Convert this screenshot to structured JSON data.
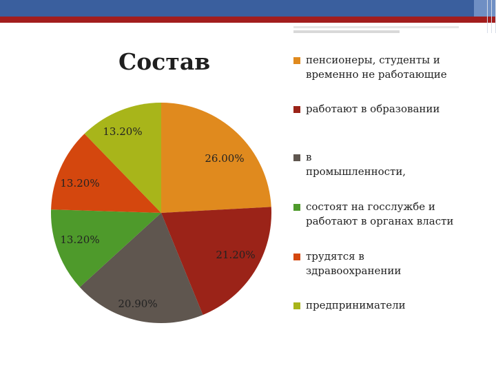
{
  "slide": {
    "title": "Состав"
  },
  "chart_data": {
    "type": "pie",
    "title": "Состав",
    "legend_position": "right",
    "slices": [
      {
        "label": "пенсионеры, студенты и временно не работающие",
        "legend_lines": [
          "пенсионеры, студенты и",
          "временно не работающие"
        ],
        "value": 26.0,
        "display": "26.00%",
        "color": "#e08a1e"
      },
      {
        "label": "работают в образовании",
        "legend_lines": [
          "работают в образовании"
        ],
        "value": 21.2,
        "display": "21.20%",
        "color": "#9b2318"
      },
      {
        "label": "в промышленности,",
        "legend_lines": [
          "в",
          "промышленности,"
        ],
        "value": 20.9,
        "display": "20.90%",
        "color": "#5f564f"
      },
      {
        "label": "состоят на госслужбе и работают в органах власти",
        "legend_lines": [
          "состоят на госслужбе и",
          "работают в органах власти"
        ],
        "value": 13.2,
        "display": "13.20%",
        "color": "#4e9a2b"
      },
      {
        "label": "трудятся в здравоохранении",
        "legend_lines": [
          "трудятся в",
          "здравоохранении"
        ],
        "value": 13.2,
        "display": "13.20%",
        "color": "#d4470e"
      },
      {
        "label": "предприниматели",
        "legend_lines": [
          "предприниматели"
        ],
        "value": 13.2,
        "display": "13.20%",
        "color": "#a8b51a"
      }
    ]
  }
}
